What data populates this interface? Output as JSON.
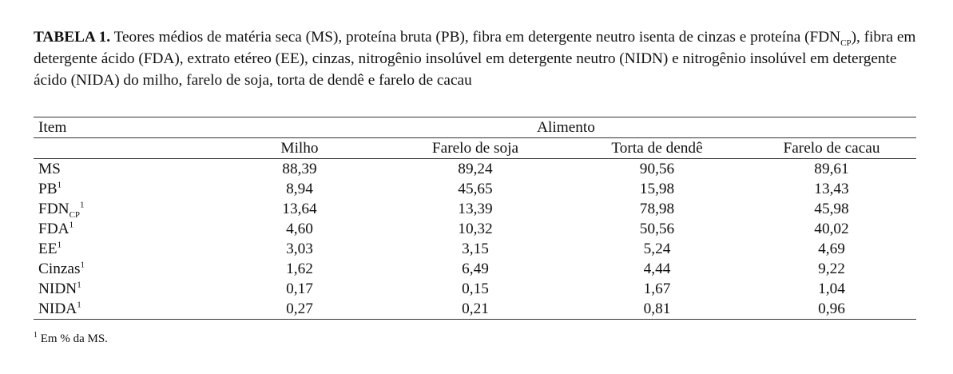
{
  "caption": {
    "label": "TABELA 1.",
    "text_before_sub": "Teores médios de matéria seca (MS), proteína bruta (PB), fibra em detergente neutro isenta de cinzas e proteína (FDN",
    "sub": "CP",
    "text_after_sub": "), fibra em detergente ácido (FDA), extrato etéreo (EE), cinzas, nitrogênio insolúvel em detergente neutro (NIDN) e nitrogênio insolúvel em detergente ácido (NIDA) do milho, farelo de soja, torta de dendê e farelo de cacau"
  },
  "table": {
    "item_header": "Item",
    "group_header": "Alimento",
    "columns": [
      "Milho",
      "Farelo de soja",
      "Torta de dendê",
      "Farelo de cacau"
    ],
    "rows": [
      {
        "item": "MS",
        "values": [
          "88,39",
          "89,24",
          "90,56",
          "89,61"
        ]
      },
      {
        "item": "PB",
        "sup": "1",
        "values": [
          "8,94",
          "45,65",
          "15,98",
          "13,43"
        ]
      },
      {
        "item": "FDN",
        "sub": "CP",
        "sup": "1",
        "values": [
          "13,64",
          "13,39",
          "78,98",
          "45,98"
        ]
      },
      {
        "item": "FDA",
        "sup": "1",
        "values": [
          "4,60",
          "10,32",
          "50,56",
          "40,02"
        ]
      },
      {
        "item": "EE",
        "sup": "1",
        "values": [
          "3,03",
          "3,15",
          "5,24",
          "4,69"
        ]
      },
      {
        "item": "Cinzas",
        "sup": "1",
        "values": [
          "1,62",
          "6,49",
          "4,44",
          "9,22"
        ]
      },
      {
        "item": "NIDN",
        "sup": "1",
        "values": [
          "0,17",
          "0,15",
          "1,67",
          "1,04"
        ]
      },
      {
        "item": "NIDA",
        "sup": "1",
        "values": [
          "0,27",
          "0,21",
          "0,81",
          "0,96"
        ]
      }
    ]
  },
  "footnote": {
    "mark": "1",
    "text": "Em % da MS."
  }
}
